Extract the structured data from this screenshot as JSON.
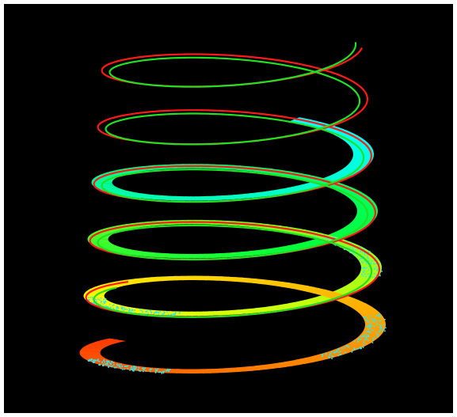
{
  "scene": {
    "background": "#000000",
    "frame_color": "#ffffff",
    "colors": {
      "line_red": "#ff1a1a",
      "line_green": "#22e022",
      "ribbon_orange": "#ff3a00",
      "ribbon_yellow": "#ffff00",
      "ribbon_green": "#00ff3c",
      "ribbon_cyan": "#00ffff",
      "cyan_stipple": "#33e8e8"
    },
    "objects": [
      {
        "name": "red-helix-line",
        "kind": "line-helix"
      },
      {
        "name": "green-helix-line",
        "kind": "line-helix"
      },
      {
        "name": "colored-ribbon-helix",
        "kind": "ribbon-helix"
      }
    ]
  }
}
